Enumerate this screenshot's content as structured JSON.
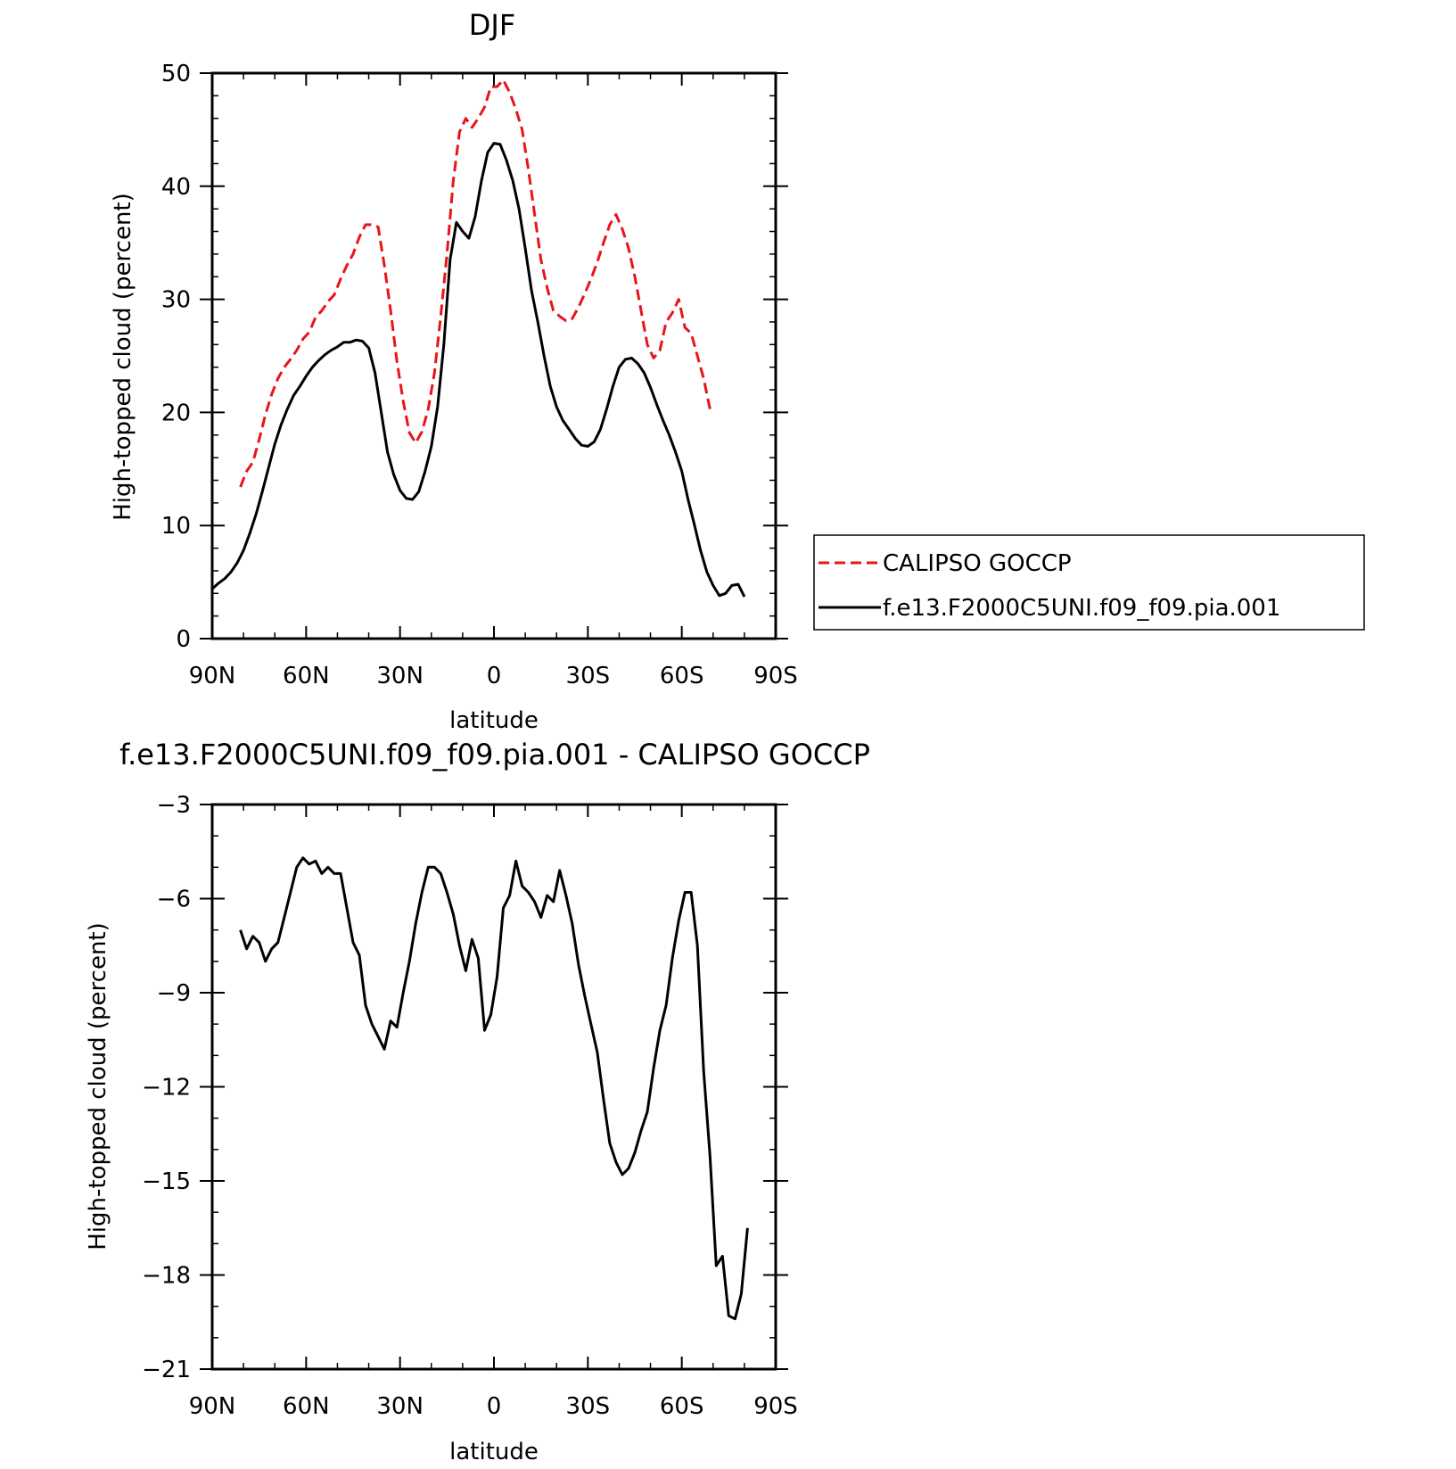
{
  "chart_data": [
    {
      "type": "line",
      "title": "DJF",
      "xlabel": "latitude",
      "ylabel": "High-topped cloud (percent)",
      "xlim": [
        90,
        -90
      ],
      "ylim": [
        0,
        50
      ],
      "xticks": [
        {
          "v": 90,
          "label": "90N"
        },
        {
          "v": 60,
          "label": "60N"
        },
        {
          "v": 30,
          "label": "30N"
        },
        {
          "v": 0,
          "label": "0"
        },
        {
          "v": -30,
          "label": "30S"
        },
        {
          "v": -60,
          "label": "60S"
        },
        {
          "v": -90,
          "label": "90S"
        }
      ],
      "yticks": [
        {
          "v": 0,
          "label": "0"
        },
        {
          "v": 10,
          "label": "10"
        },
        {
          "v": 20,
          "label": "20"
        },
        {
          "v": 30,
          "label": "30"
        },
        {
          "v": 40,
          "label": "40"
        },
        {
          "v": 50,
          "label": "50"
        }
      ],
      "legend_position": "right",
      "series": [
        {
          "name": "CALIPSO GOCCP",
          "color": "#e8141b",
          "dash": "dashed",
          "points": [
            [
              81,
              13.4
            ],
            [
              79,
              14.8
            ],
            [
              77,
              15.6
            ],
            [
              75,
              17.6
            ],
            [
              73,
              19.8
            ],
            [
              71,
              21.6
            ],
            [
              69,
              23.0
            ],
            [
              67,
              24.0
            ],
            [
              65,
              24.7
            ],
            [
              63,
              25.5
            ],
            [
              61,
              26.5
            ],
            [
              59,
              27.1
            ],
            [
              57,
              28.4
            ],
            [
              55,
              29.0
            ],
            [
              53,
              29.8
            ],
            [
              51,
              30.4
            ],
            [
              49,
              31.8
            ],
            [
              47,
              33.0
            ],
            [
              45,
              34.0
            ],
            [
              43,
              35.5
            ],
            [
              41,
              36.6
            ],
            [
              39,
              36.6
            ],
            [
              37,
              36.4
            ],
            [
              35,
              33.0
            ],
            [
              33,
              29.0
            ],
            [
              31,
              24.5
            ],
            [
              29,
              21.0
            ],
            [
              27,
              18.2
            ],
            [
              25,
              17.3
            ],
            [
              23,
              18.3
            ],
            [
              21,
              20.3
            ],
            [
              19,
              23.5
            ],
            [
              17,
              28.5
            ],
            [
              15,
              34.0
            ],
            [
              13,
              40.5
            ],
            [
              11,
              44.8
            ],
            [
              9,
              46.0
            ],
            [
              7,
              45.2
            ],
            [
              5,
              46.0
            ],
            [
              3,
              47.0
            ],
            [
              1,
              48.8
            ],
            [
              -1,
              48.8
            ],
            [
              -3,
              49.4
            ],
            [
              -5,
              48.3
            ],
            [
              -7,
              46.8
            ],
            [
              -9,
              45.0
            ],
            [
              -11,
              41.5
            ],
            [
              -13,
              37.5
            ],
            [
              -15,
              33.5
            ],
            [
              -17,
              31.0
            ],
            [
              -19,
              29.0
            ],
            [
              -21,
              28.5
            ],
            [
              -23,
              28.1
            ],
            [
              -25,
              28.3
            ],
            [
              -27,
              29.3
            ],
            [
              -29,
              30.5
            ],
            [
              -31,
              31.8
            ],
            [
              -33,
              33.3
            ],
            [
              -35,
              35.0
            ],
            [
              -37,
              36.6
            ],
            [
              -39,
              37.5
            ],
            [
              -41,
              36.2
            ],
            [
              -43,
              34.5
            ],
            [
              -45,
              32.0
            ],
            [
              -47,
              29.0
            ],
            [
              -49,
              26.0
            ],
            [
              -51,
              24.8
            ],
            [
              -53,
              25.5
            ],
            [
              -55,
              28.0
            ],
            [
              -57,
              28.8
            ],
            [
              -59,
              30.0
            ],
            [
              -61,
              27.5
            ],
            [
              -63,
              27.0
            ],
            [
              -65,
              25.0
            ],
            [
              -67,
              23.0
            ],
            [
              -69,
              20.3
            ]
          ]
        },
        {
          "name": "f.e13.F2000C5UNI.f09_f09.pia.001",
          "color": "#000000",
          "dash": "solid",
          "points": [
            [
              90,
              4.4
            ],
            [
              88,
              4.9
            ],
            [
              86,
              5.3
            ],
            [
              84,
              5.9
            ],
            [
              82,
              6.7
            ],
            [
              80,
              7.8
            ],
            [
              78,
              9.3
            ],
            [
              76,
              11.0
            ],
            [
              74,
              13.0
            ],
            [
              72,
              15.1
            ],
            [
              70,
              17.2
            ],
            [
              68,
              18.9
            ],
            [
              66,
              20.3
            ],
            [
              64,
              21.5
            ],
            [
              62,
              22.3
            ],
            [
              60,
              23.2
            ],
            [
              58,
              24.0
            ],
            [
              56,
              24.6
            ],
            [
              54,
              25.1
            ],
            [
              52,
              25.5
            ],
            [
              50,
              25.8
            ],
            [
              48,
              26.2
            ],
            [
              46,
              26.2
            ],
            [
              44,
              26.4
            ],
            [
              42,
              26.3
            ],
            [
              40,
              25.7
            ],
            [
              38,
              23.5
            ],
            [
              36,
              20.0
            ],
            [
              34,
              16.5
            ],
            [
              32,
              14.5
            ],
            [
              30,
              13.1
            ],
            [
              28,
              12.4
            ],
            [
              26,
              12.3
            ],
            [
              24,
              13.0
            ],
            [
              22,
              14.8
            ],
            [
              20,
              17.0
            ],
            [
              18,
              20.5
            ],
            [
              16,
              26.0
            ],
            [
              14,
              33.5
            ],
            [
              12,
              36.8
            ],
            [
              10,
              36.0
            ],
            [
              8,
              35.4
            ],
            [
              6,
              37.3
            ],
            [
              4,
              40.5
            ],
            [
              2,
              43.0
            ],
            [
              0,
              43.8
            ],
            [
              -2,
              43.7
            ],
            [
              -4,
              42.3
            ],
            [
              -6,
              40.5
            ],
            [
              -8,
              38.0
            ],
            [
              -10,
              34.5
            ],
            [
              -12,
              30.8
            ],
            [
              -14,
              28.0
            ],
            [
              -16,
              25.0
            ],
            [
              -18,
              22.3
            ],
            [
              -20,
              20.5
            ],
            [
              -22,
              19.3
            ],
            [
              -24,
              18.5
            ],
            [
              -26,
              17.7
            ],
            [
              -28,
              17.1
            ],
            [
              -30,
              17.0
            ],
            [
              -32,
              17.4
            ],
            [
              -34,
              18.5
            ],
            [
              -36,
              20.3
            ],
            [
              -38,
              22.3
            ],
            [
              -40,
              24.0
            ],
            [
              -42,
              24.7
            ],
            [
              -44,
              24.8
            ],
            [
              -46,
              24.3
            ],
            [
              -48,
              23.5
            ],
            [
              -50,
              22.2
            ],
            [
              -52,
              20.7
            ],
            [
              -54,
              19.3
            ],
            [
              -56,
              18.0
            ],
            [
              -58,
              16.5
            ],
            [
              -60,
              14.8
            ],
            [
              -62,
              12.3
            ],
            [
              -64,
              10.1
            ],
            [
              -66,
              7.8
            ],
            [
              -68,
              5.9
            ],
            [
              -70,
              4.7
            ],
            [
              -72,
              3.8
            ],
            [
              -74,
              4.0
            ],
            [
              -76,
              4.7
            ],
            [
              -78,
              4.8
            ],
            [
              -80,
              3.7
            ]
          ]
        }
      ]
    },
    {
      "type": "line",
      "title": "f.e13.F2000C5UNI.f09_f09.pia.001 - CALIPSO GOCCP",
      "xlabel": "latitude",
      "ylabel": "High-topped cloud (percent)",
      "xlim": [
        90,
        -90
      ],
      "ylim": [
        -21,
        -3
      ],
      "xticks": [
        {
          "v": 90,
          "label": "90N"
        },
        {
          "v": 60,
          "label": "60N"
        },
        {
          "v": 30,
          "label": "30N"
        },
        {
          "v": 0,
          "label": "0"
        },
        {
          "v": -30,
          "label": "30S"
        },
        {
          "v": -60,
          "label": "60S"
        },
        {
          "v": -90,
          "label": "90S"
        }
      ],
      "yticks": [
        {
          "v": -3,
          "label": "-3"
        },
        {
          "v": -6,
          "label": "-6"
        },
        {
          "v": -9,
          "label": "-9"
        },
        {
          "v": -12,
          "label": "-12"
        },
        {
          "v": -15,
          "label": "-15"
        },
        {
          "v": -18,
          "label": "-18"
        },
        {
          "v": -21,
          "label": "-21"
        }
      ],
      "series": [
        {
          "color": "#000000",
          "dash": "solid",
          "points": [
            [
              81,
              -7.0
            ],
            [
              79,
              -7.6
            ],
            [
              77,
              -7.2
            ],
            [
              75,
              -7.4
            ],
            [
              73,
              -8.0
            ],
            [
              71,
              -7.6
            ],
            [
              69,
              -7.4
            ],
            [
              67,
              -6.6
            ],
            [
              65,
              -5.8
            ],
            [
              63,
              -5.0
            ],
            [
              61,
              -4.7
            ],
            [
              59,
              -4.9
            ],
            [
              57,
              -4.8
            ],
            [
              55,
              -5.2
            ],
            [
              53,
              -5.0
            ],
            [
              51,
              -5.2
            ],
            [
              49,
              -5.2
            ],
            [
              47,
              -6.3
            ],
            [
              45,
              -7.4
            ],
            [
              43,
              -7.8
            ],
            [
              41,
              -9.4
            ],
            [
              39,
              -10.0
            ],
            [
              37,
              -10.4
            ],
            [
              35,
              -10.8
            ],
            [
              33,
              -9.9
            ],
            [
              31,
              -10.1
            ],
            [
              29,
              -9.0
            ],
            [
              27,
              -8.0
            ],
            [
              25,
              -6.8
            ],
            [
              23,
              -5.8
            ],
            [
              21,
              -5.0
            ],
            [
              19,
              -5.0
            ],
            [
              17,
              -5.2
            ],
            [
              15,
              -5.8
            ],
            [
              13,
              -6.5
            ],
            [
              11,
              -7.5
            ],
            [
              9,
              -8.3
            ],
            [
              7,
              -7.3
            ],
            [
              5,
              -7.9
            ],
            [
              3,
              -10.2
            ],
            [
              1,
              -9.7
            ],
            [
              -1,
              -8.5
            ],
            [
              -3,
              -6.3
            ],
            [
              -5,
              -5.9
            ],
            [
              -7,
              -4.8
            ],
            [
              -9,
              -5.6
            ],
            [
              -11,
              -5.8
            ],
            [
              -13,
              -6.1
            ],
            [
              -15,
              -6.6
            ],
            [
              -17,
              -5.9
            ],
            [
              -19,
              -6.1
            ],
            [
              -21,
              -5.1
            ],
            [
              -23,
              -5.9
            ],
            [
              -25,
              -6.8
            ],
            [
              -27,
              -8.1
            ],
            [
              -29,
              -9.1
            ],
            [
              -31,
              -10.0
            ],
            [
              -33,
              -10.9
            ],
            [
              -35,
              -12.4
            ],
            [
              -37,
              -13.8
            ],
            [
              -39,
              -14.4
            ],
            [
              -41,
              -14.8
            ],
            [
              -43,
              -14.6
            ],
            [
              -45,
              -14.1
            ],
            [
              -47,
              -13.4
            ],
            [
              -49,
              -12.8
            ],
            [
              -51,
              -11.4
            ],
            [
              -53,
              -10.2
            ],
            [
              -55,
              -9.4
            ],
            [
              -57,
              -7.9
            ],
            [
              -59,
              -6.7
            ],
            [
              -61,
              -5.8
            ],
            [
              -63,
              -5.8
            ],
            [
              -65,
              -7.5
            ],
            [
              -67,
              -11.5
            ],
            [
              -69,
              -14.2
            ],
            [
              -71,
              -17.7
            ],
            [
              -73,
              -17.4
            ],
            [
              -75,
              -19.3
            ],
            [
              -77,
              -19.4
            ],
            [
              -79,
              -18.6
            ],
            [
              -81,
              -16.5
            ]
          ]
        }
      ]
    }
  ]
}
